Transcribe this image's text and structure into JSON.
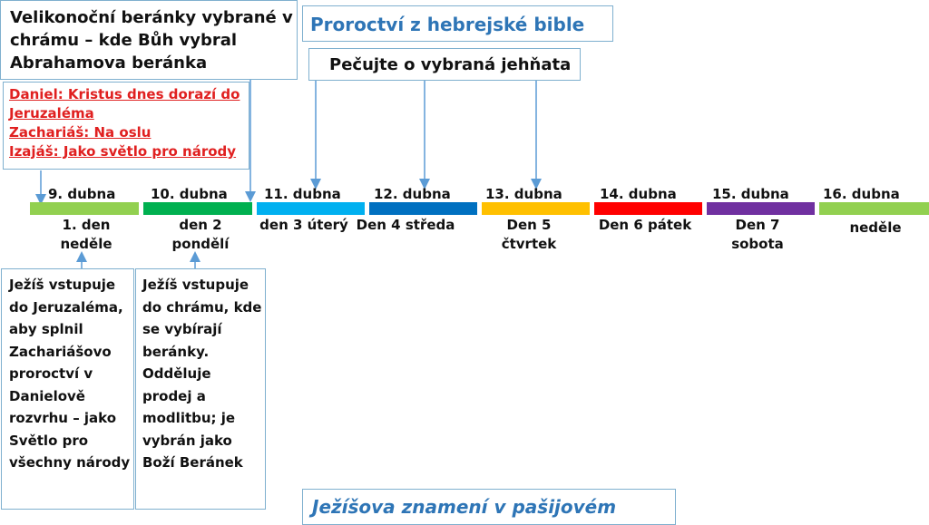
{
  "top_left_box": {
    "text": "Velikonoční beránky vybrané v chrámu – kde Bůh vybral Abrahamova beránka"
  },
  "prophecy_title": "Proroctví z hebrejské bible",
  "lambs_label": "Pečujte o vybraná jehňata",
  "prophecies": [
    "Daniel: Kristus dnes dorazí do Jeruzaléma",
    "Zachariáš: Na oslu",
    "Izajáš: Jako světlo pro národy"
  ],
  "timeline": [
    {
      "date": "9. dubna",
      "day": "1. den neděle",
      "color": "#92d050"
    },
    {
      "date": "10. dubna",
      "day": "den 2 pondělí",
      "color": "#00b050"
    },
    {
      "date": "11. dubna",
      "day": "den 3 úterý",
      "color": "#00b0f0"
    },
    {
      "date": "12. dubna",
      "day": "Den 4 středa",
      "color": "#0070c0"
    },
    {
      "date": "13. dubna",
      "day": "Den 5 čtvrtek",
      "color": "#ffc000"
    },
    {
      "date": "14. dubna",
      "day": "Den 6 pátek",
      "color": "#ff0000"
    },
    {
      "date": "15. dubna",
      "day": "Den 7 sobota",
      "color": "#7030a0"
    },
    {
      "date": "16. dubna",
      "day": "neděle",
      "color": "#92d050"
    }
  ],
  "event_box_1": "Ježíš vstupuje do Jeruzaléma, aby splnil Zachariášovo proroctví v Danielově rozvrhu – jako Světlo pro všechny národy",
  "event_box_2": "Ježíš vstupuje do chrámu, kde se vybírají beránky. Odděluje prodej a modlitbu; je vybrán jako Boží Beránek",
  "bottom_title": "Ježíšova znamení v pašijovém"
}
